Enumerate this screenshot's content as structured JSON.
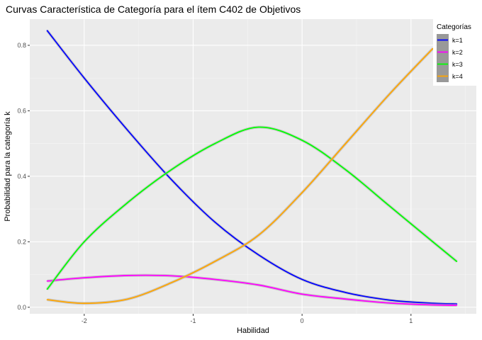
{
  "chart_data": {
    "type": "line",
    "title": "Curvas Característica de Categoría para el ítem C402 de Objetivos",
    "xlabel": "Habilidad",
    "ylabel": "Probabilidad para la categoría k",
    "xlim": [
      -2.5,
      1.6
    ],
    "ylim": [
      -0.02,
      0.88
    ],
    "xticks": [
      -2,
      -1,
      0,
      1
    ],
    "yticks": [
      0.0,
      0.2,
      0.4,
      0.6,
      0.8
    ],
    "xtick_labels": [
      "-2",
      "-1",
      "0",
      "1"
    ],
    "ytick_labels": [
      "0.0",
      "0.2",
      "0.4",
      "0.6",
      "0.8"
    ],
    "grid": true,
    "background": "#ebebeb",
    "legend": {
      "title": "Categorías",
      "position": "top-right",
      "key_fill": "#999999"
    },
    "series": [
      {
        "name": "k=1",
        "color": "#0000ff",
        "x": [
          -2.34,
          -2.0,
          -1.6,
          -1.2,
          -0.8,
          -0.4,
          0.0,
          0.4,
          0.8,
          1.2,
          1.42
        ],
        "y": [
          0.845,
          0.7,
          0.54,
          0.39,
          0.26,
          0.16,
          0.085,
          0.045,
          0.022,
          0.012,
          0.01
        ]
      },
      {
        "name": "k=2",
        "color": "#ff00ff",
        "x": [
          -2.34,
          -2.0,
          -1.6,
          -1.2,
          -0.8,
          -0.4,
          0.0,
          0.4,
          0.8,
          1.2,
          1.42
        ],
        "y": [
          0.08,
          0.09,
          0.097,
          0.096,
          0.085,
          0.068,
          0.04,
          0.025,
          0.013,
          0.007,
          0.006
        ]
      },
      {
        "name": "k=3",
        "color": "#00ff00",
        "x": [
          -2.34,
          -2.0,
          -1.6,
          -1.2,
          -0.8,
          -0.4,
          0.0,
          0.4,
          0.8,
          1.2,
          1.42
        ],
        "y": [
          0.055,
          0.2,
          0.32,
          0.42,
          0.5,
          0.55,
          0.51,
          0.42,
          0.31,
          0.2,
          0.14
        ]
      },
      {
        "name": "k=4",
        "color": "#ffa500",
        "x": [
          -2.34,
          -2.0,
          -1.6,
          -1.2,
          -0.8,
          -0.4,
          0.0,
          0.4,
          0.8,
          1.2
        ],
        "y": [
          0.023,
          0.012,
          0.025,
          0.075,
          0.14,
          0.22,
          0.35,
          0.5,
          0.65,
          0.79
        ]
      }
    ]
  }
}
